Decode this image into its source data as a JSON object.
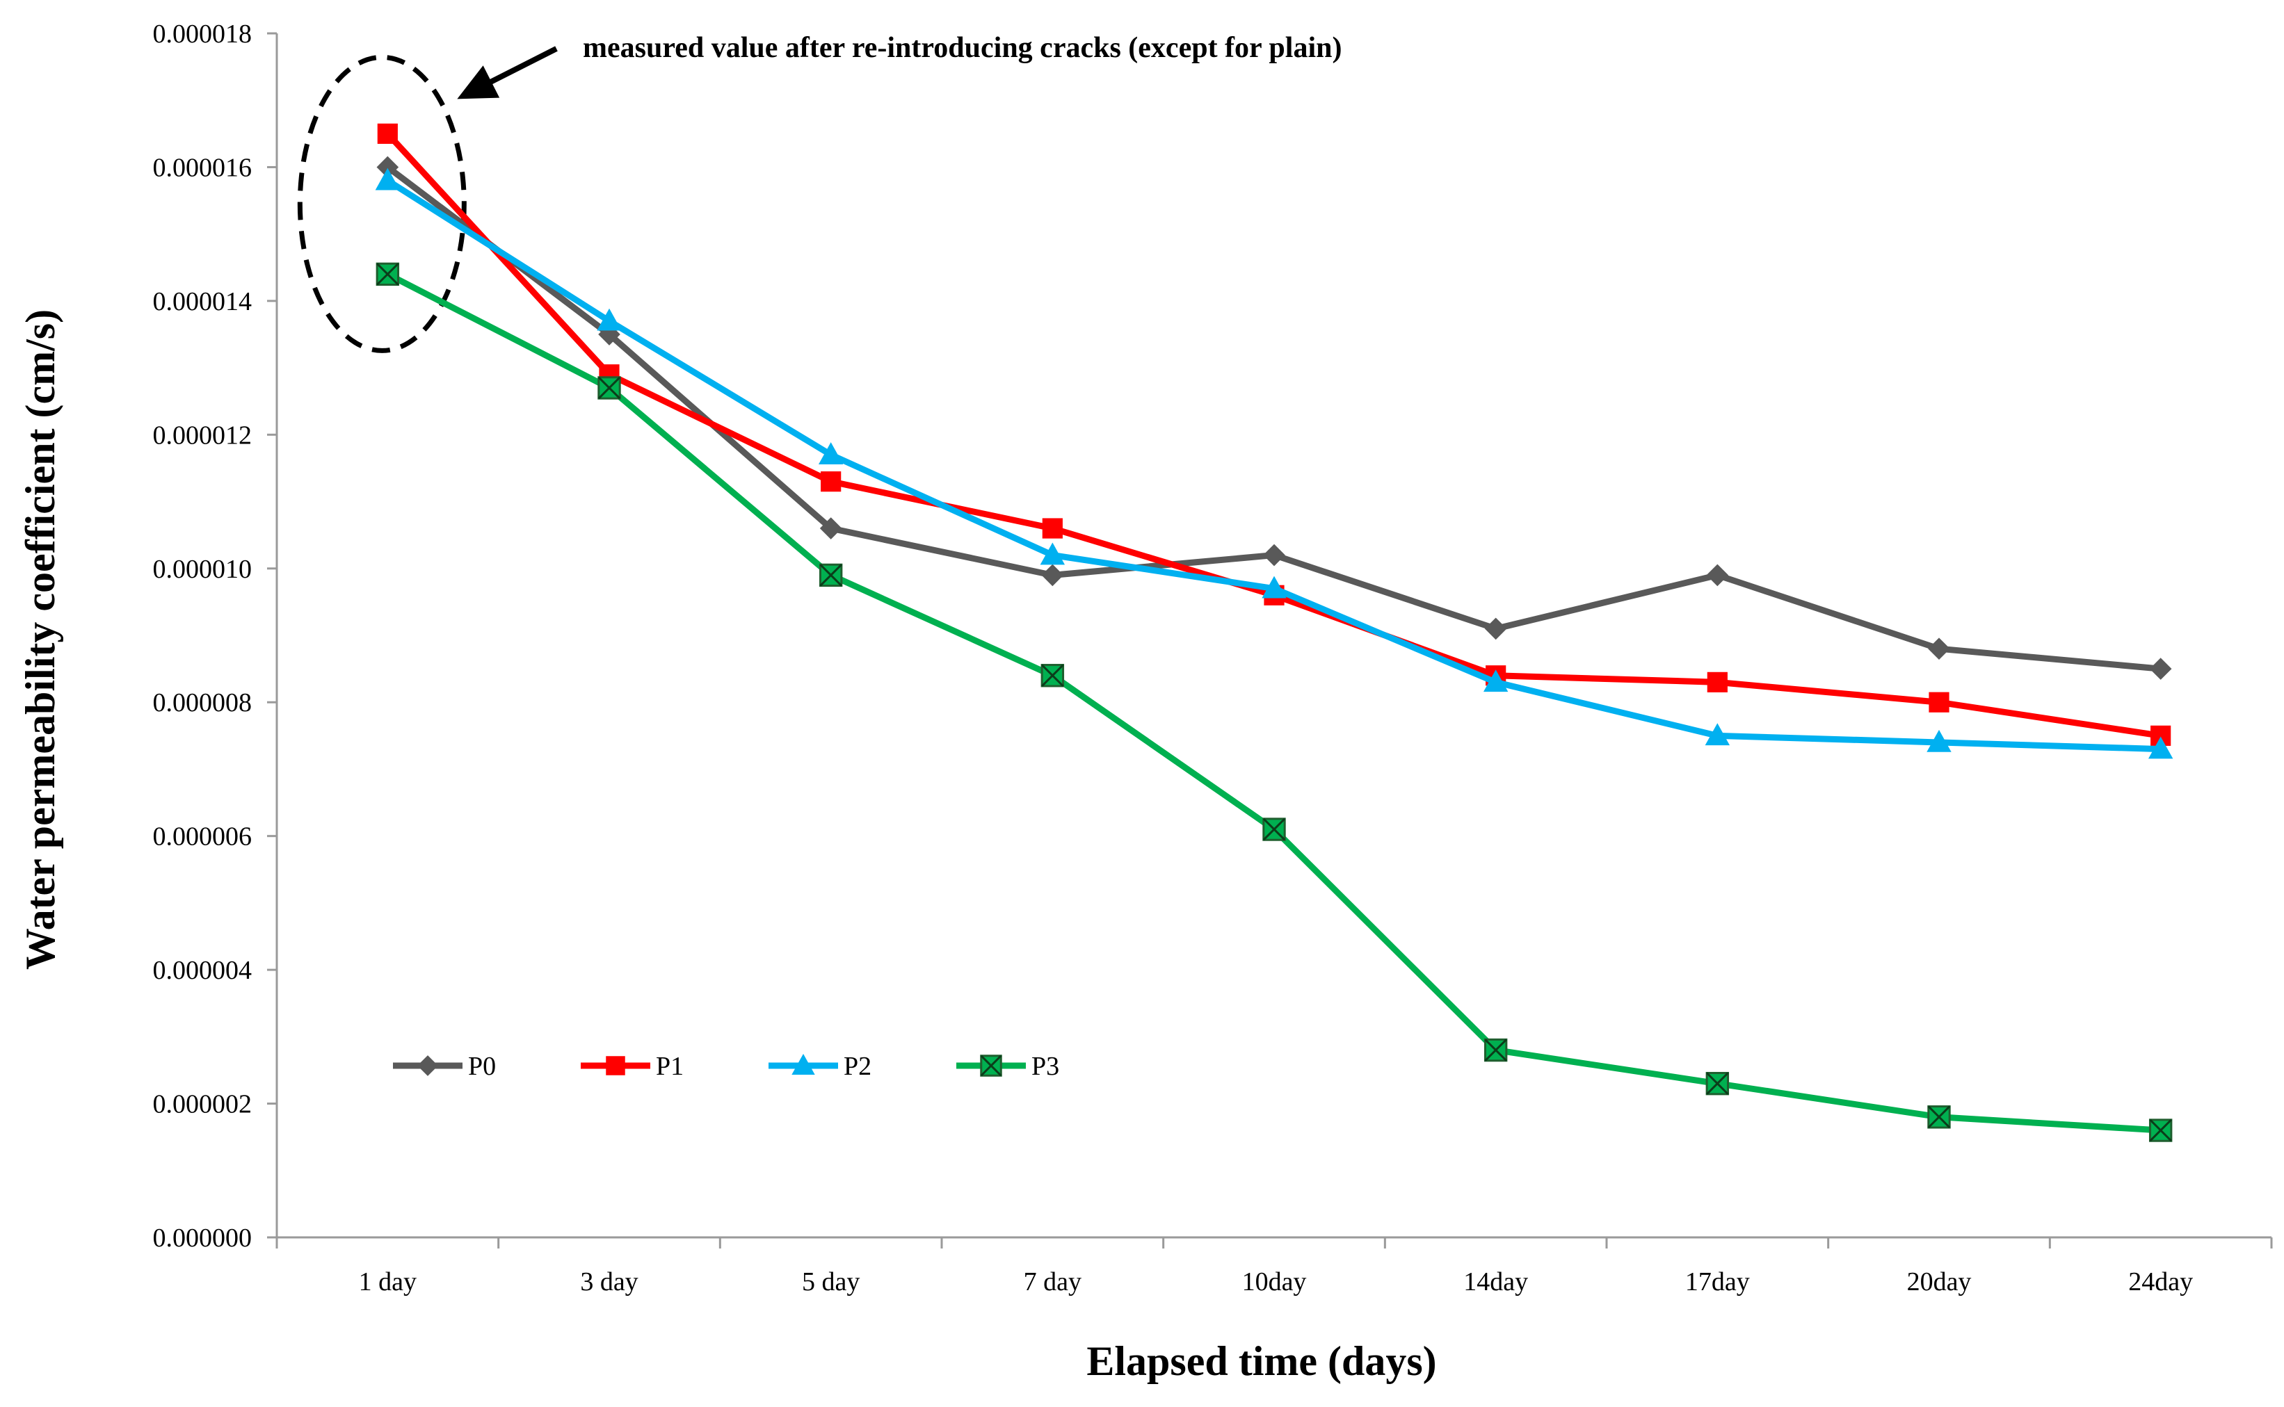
{
  "chart_data": {
    "type": "line",
    "title": "",
    "xlabel": "Elapsed time (days)",
    "ylabel": "Water permeability  coefficient  (cm/s)",
    "categories": [
      "1 day",
      "3 day",
      "5 day",
      "7 day",
      "10day",
      "14day",
      "17day",
      "20day",
      "24day"
    ],
    "ylim": [
      0,
      1.8e-05
    ],
    "ytick_values": [
      0,
      2e-06,
      4e-06,
      6e-06,
      8e-06,
      1e-05,
      1.2e-05,
      1.4e-05,
      1.6e-05,
      1.8e-05
    ],
    "ytick_labels": [
      "0.000000",
      "0.000002",
      "0.000004",
      "0.000006",
      "0.000008",
      "0.000010",
      "0.000012",
      "0.000014",
      "0.000016",
      "0.000018"
    ],
    "grid": false,
    "legend_position": "lower-left",
    "series": [
      {
        "name": "P0",
        "color": "#595959",
        "marker": "diamond",
        "values": [
          1.6e-05,
          1.35e-05,
          1.06e-05,
          9.9e-06,
          1.02e-05,
          9.1e-06,
          9.9e-06,
          8.8e-06,
          8.5e-06
        ]
      },
      {
        "name": "P1",
        "color": "#ff0000",
        "marker": "square",
        "values": [
          1.65e-05,
          1.29e-05,
          1.13e-05,
          1.06e-05,
          9.6e-06,
          8.4e-06,
          8.3e-06,
          8e-06,
          7.5e-06
        ]
      },
      {
        "name": "P2",
        "color": "#00b0f0",
        "marker": "triangle",
        "values": [
          1.58e-05,
          1.37e-05,
          1.17e-05,
          1.02e-05,
          9.7e-06,
          8.3e-06,
          7.5e-06,
          7.4e-06,
          7.3e-06
        ]
      },
      {
        "name": "P3",
        "color": "#00b050",
        "marker": "square-x",
        "values": [
          1.44e-05,
          1.27e-05,
          9.9e-06,
          8.4e-06,
          6.1e-06,
          2.8e-06,
          2.3e-06,
          1.8e-06,
          1.6e-06
        ]
      }
    ],
    "annotations": [
      {
        "text": "measured value after re-introducing cracks (except for plain)",
        "target_category": "1 day",
        "style": "dashed-ellipse-with-arrow"
      }
    ]
  }
}
